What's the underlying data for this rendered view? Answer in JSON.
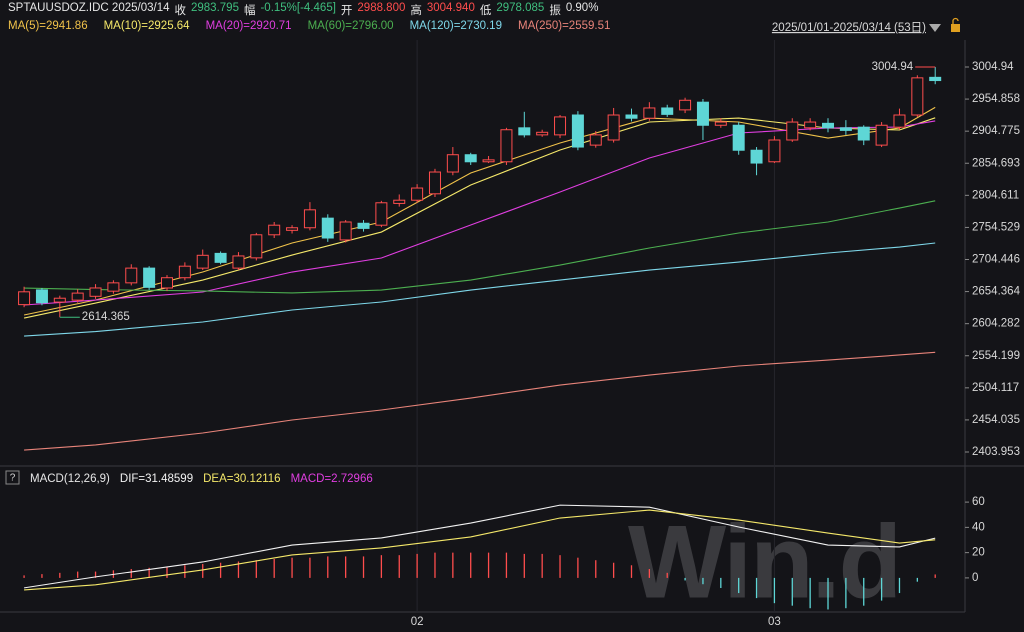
{
  "header": {
    "symbol": "SPTAUUSDOZ.IDC 2025/03/14",
    "close_label": "收",
    "close": "2983.795",
    "change_label": "幅",
    "change": "-0.15%[-4.465]",
    "open_label": "开",
    "open": "2988.800",
    "high_label": "高",
    "high": "3004.940",
    "low_label": "低",
    "low": "2978.085",
    "amp_label": "振",
    "amp": "0.90%",
    "date_range": "2025/01/01-2025/03/14 (53日)",
    "watermark": "Win.d",
    "help": "?"
  },
  "chart_data": [
    {
      "type": "candlestick",
      "open": [
        2634,
        2657,
        2638,
        2641,
        2647,
        2655,
        2668,
        2691,
        2660,
        2676,
        2691,
        2714,
        2691,
        2707,
        2743,
        2750,
        2754,
        2769,
        2735,
        2761,
        2758,
        2792,
        2797,
        2807,
        2841,
        2868,
        2857,
        2857,
        2910,
        2899,
        2899,
        2930,
        2883,
        2891,
        2930,
        2925,
        2941,
        2938,
        2950,
        2914,
        2914,
        2875,
        2857,
        2891,
        2910,
        2917,
        2910,
        2911,
        2883,
        2911,
        2930,
        2988.8
      ],
      "high": [
        2662,
        2660,
        2648,
        2658,
        2666,
        2672,
        2697,
        2694,
        2680,
        2700,
        2720,
        2717,
        2716,
        2746,
        2763,
        2758,
        2794,
        2775,
        2766,
        2766,
        2796,
        2806,
        2822,
        2846,
        2880,
        2871,
        2866,
        2910,
        2935,
        2907,
        2930,
        2936,
        2905,
        2941,
        2940,
        2950,
        2946,
        2957,
        2955,
        2925,
        2919,
        2880,
        2897,
        2925,
        2925,
        2925,
        2922,
        2914,
        2919,
        2940,
        2992,
        3004.94
      ],
      "low": [
        2630,
        2633,
        2614.365,
        2637,
        2643,
        2651,
        2664,
        2657,
        2655,
        2672,
        2688,
        2697,
        2688,
        2703,
        2738,
        2745,
        2750,
        2732,
        2731,
        2748,
        2755,
        2787,
        2793,
        2802,
        2836,
        2852,
        2855,
        2852,
        2895,
        2896,
        2894,
        2875,
        2879,
        2887,
        2920,
        2921,
        2927,
        2933,
        2891,
        2910,
        2868,
        2836,
        2855,
        2888,
        2906,
        2903,
        2899,
        2883,
        2880,
        2907,
        2927,
        2978.085
      ],
      "close": [
        2654,
        2637,
        2644,
        2652,
        2660,
        2668,
        2691,
        2661,
        2676,
        2694,
        2711,
        2700,
        2710,
        2743,
        2758,
        2754,
        2782,
        2738,
        2763,
        2753,
        2793,
        2797,
        2816,
        2841,
        2868,
        2857,
        2860,
        2907,
        2899,
        2903,
        2927,
        2880,
        2899,
        2930,
        2925,
        2941,
        2931,
        2953,
        2914,
        2919,
        2875,
        2855,
        2891,
        2919,
        2919,
        2910,
        2906,
        2891,
        2914,
        2930,
        2988,
        2983.795
      ],
      "up_color": "#ff4d4d",
      "down_color": "#5ed6d6",
      "ylim": [
        2388.34,
        3047.09
      ],
      "yticks": [
        3004.94,
        2954.858,
        2904.775,
        2854.693,
        2804.611,
        2754.529,
        2704.446,
        2654.364,
        2604.282,
        2554.199,
        2504.117,
        2454.035,
        2403.953
      ],
      "xlim": [
        -0.9,
        52.5
      ],
      "xticks": [
        {
          "value": 22,
          "label": "02"
        },
        {
          "value": 42,
          "label": "03"
        }
      ],
      "series": [
        {
          "name": "MA(5)=2941.86",
          "color": "#f0c24a",
          "x": [
            0,
            4,
            10,
            15,
            20,
            25,
            30,
            35,
            40,
            45,
            49,
            51
          ],
          "values": [
            2617.8,
            2641.2,
            2684.9,
            2730.2,
            2763,
            2839.5,
            2886.3,
            2925.3,
            2919.1,
            2894.1,
            2909.7,
            2941.86
          ]
        },
        {
          "name": "MA(10)=2925.64",
          "color": "#f5e86a",
          "x": [
            0,
            4,
            10,
            15,
            20,
            25,
            30,
            35,
            40,
            45,
            49,
            51
          ],
          "values": [
            2613,
            2636.5,
            2672.4,
            2711.4,
            2747.3,
            2820.7,
            2875.4,
            2919.1,
            2925.3,
            2909.7,
            2906.6,
            2925.64
          ]
        },
        {
          "name": "MA(20)=2920.71",
          "color": "#e03ee0",
          "x": [
            0,
            4,
            10,
            15,
            20,
            25,
            30,
            35,
            40,
            45,
            49,
            51
          ],
          "values": [
            2633.4,
            2641.2,
            2653.7,
            2684.9,
            2706.8,
            2758.3,
            2809.8,
            2862.9,
            2901.9,
            2909.7,
            2911.3,
            2920.71
          ]
        },
        {
          "name": "MA(60)=2796.00",
          "color": "#4caf50",
          "x": [
            0,
            4,
            10,
            15,
            20,
            25,
            30,
            35,
            40,
            45,
            49,
            51
          ],
          "values": [
            2659.9,
            2657.5,
            2655.3,
            2652.2,
            2656.8,
            2672.4,
            2695.8,
            2722.4,
            2745.8,
            2763,
            2784.8,
            2796
          ]
        },
        {
          "name": "MA(120)=2730.19",
          "color": "#7fd8ea",
          "x": [
            0,
            4,
            10,
            15,
            20,
            25,
            30,
            35,
            40,
            45,
            49,
            51
          ],
          "values": [
            2585,
            2592,
            2606.9,
            2625.6,
            2638.1,
            2656.8,
            2672.4,
            2688,
            2700.5,
            2714.6,
            2723.9,
            2730.19
          ]
        },
        {
          "name": "MA(250)=2559.51",
          "color": "#e8847a",
          "x": [
            0,
            4,
            10,
            15,
            20,
            25,
            30,
            35,
            40,
            45,
            49,
            51
          ],
          "values": [
            2407,
            2415,
            2433.6,
            2453.9,
            2469.5,
            2488.2,
            2508.5,
            2524.1,
            2538.2,
            2547.5,
            2555.4,
            2559.51
          ]
        }
      ],
      "annotations": [
        {
          "index": 51,
          "value": 3004.94,
          "color": "#ff4d4d"
        },
        {
          "index": 2,
          "value": 2614.365,
          "color": "#3fbf7f"
        }
      ]
    },
    {
      "type": "macd",
      "title": "MACD(12,26,9)",
      "ylim": [
        -27,
        68
      ],
      "yticks": [
        0,
        20,
        40,
        60
      ],
      "series": [
        {
          "name": "DIF=31.48599",
          "color": "#f2f2f2",
          "x": [
            0,
            4,
            10,
            15,
            20,
            25,
            30,
            35,
            40,
            45,
            49,
            51
          ],
          "values": [
            -7.9,
            0.8,
            12.6,
            26,
            31.6,
            43.4,
            57.6,
            56,
            40.3,
            26,
            24.5,
            31.48599
          ]
        },
        {
          "name": "DEA=30.12116",
          "color": "#f5e86a",
          "x": [
            0,
            4,
            10,
            15,
            20,
            25,
            30,
            35,
            40,
            45,
            49,
            51
          ],
          "values": [
            -9.5,
            -5.5,
            6.3,
            18.2,
            23.7,
            32.4,
            47.4,
            53.7,
            45.8,
            35.5,
            27.6,
            30.12116
          ]
        }
      ],
      "histogram": {
        "name": "MACD=2.72966",
        "color": "#e03ee0",
        "up_color": "#ff4d4d",
        "down_color": "#5ed6d6",
        "values": [
          2,
          3,
          4,
          5,
          5,
          6,
          7,
          8,
          9,
          10,
          11,
          12,
          13,
          14,
          15,
          16,
          16,
          17,
          17,
          17,
          18,
          18,
          19,
          20,
          20,
          20,
          20,
          20,
          19,
          19,
          18,
          16,
          14,
          12,
          10,
          7,
          4,
          -2,
          -5,
          -8,
          -12,
          -16,
          -20,
          -22,
          -24,
          -25,
          -24,
          -22,
          -18,
          -12,
          -3,
          2.72966
        ]
      }
    }
  ]
}
